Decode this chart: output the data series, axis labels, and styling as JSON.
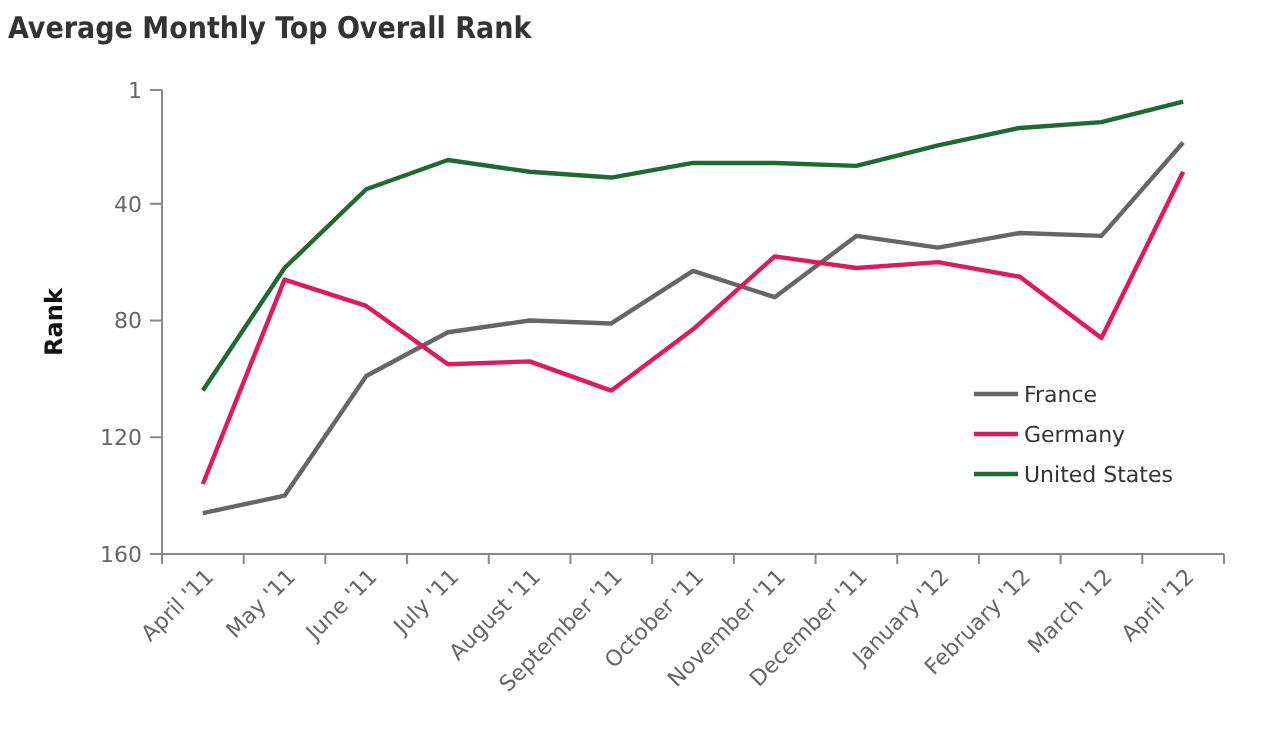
{
  "chart_data": {
    "type": "line",
    "title": "Average Monthly Top Overall Rank",
    "ylabel": "Rank",
    "categories": [
      "April '11",
      "May '11",
      "June '11",
      "July '11",
      "August '11",
      "September '11",
      "October '11",
      "November '11",
      "December '11",
      "January '12",
      "February '12",
      "March '12",
      "April '12"
    ],
    "series": [
      {
        "name": "France",
        "color": "#666666",
        "values": [
          146,
          140,
          99,
          84,
          80,
          81,
          63,
          72,
          51,
          55,
          50,
          51,
          19
        ]
      },
      {
        "name": "Germany",
        "color": "#e2185f",
        "values": [
          136,
          66,
          75,
          95,
          94,
          104,
          83,
          58,
          62,
          60,
          65,
          86,
          29
        ]
      },
      {
        "name": "United States",
        "color": "#1e6b32",
        "values": [
          104,
          62,
          35,
          25,
          29,
          31,
          26,
          26,
          27,
          20,
          14,
          12,
          5
        ]
      }
    ],
    "ylim": [
      160,
      1
    ],
    "yticks": [
      1,
      40,
      80,
      120,
      160
    ],
    "grid": false,
    "legend": "bottom right",
    "marker": "none",
    "line_style": "solid"
  }
}
